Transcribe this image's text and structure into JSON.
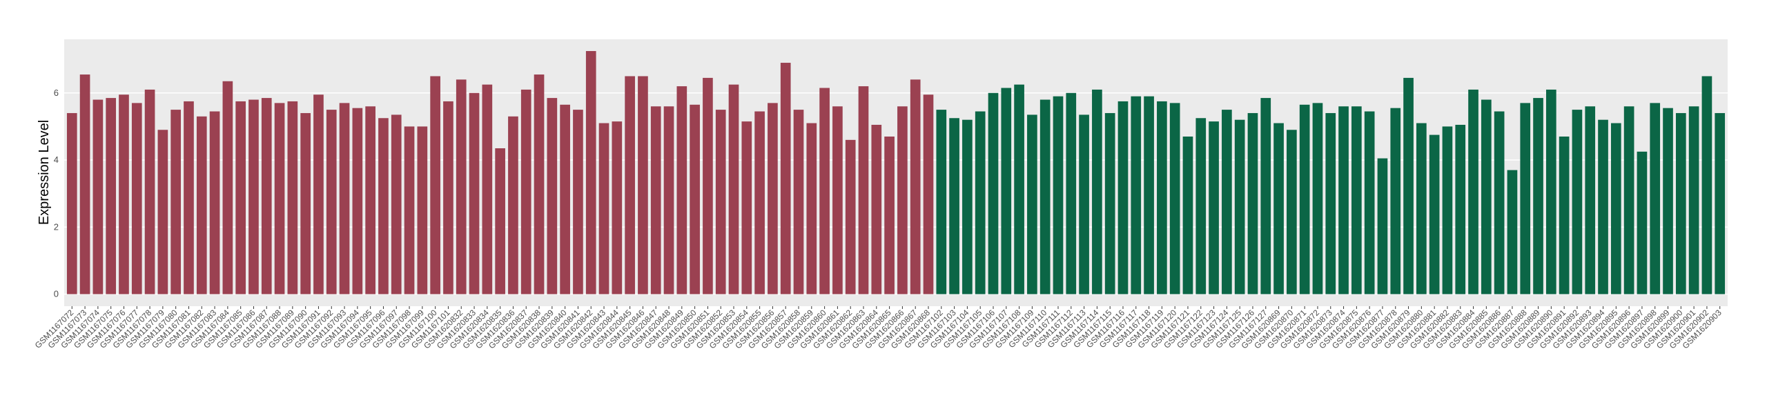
{
  "chart_data": {
    "type": "bar",
    "y_label": "Expression Level",
    "ylim": [
      -0.36,
      7.6
    ],
    "yticks": [
      0,
      2,
      4,
      6
    ],
    "grid": true,
    "series": [
      {
        "color": "#9b4151",
        "categories": [
          "GSM1167072",
          "GSM1167073",
          "GSM1167074",
          "GSM1167075",
          "GSM1167076",
          "GSM1167077",
          "GSM1167078",
          "GSM1167079",
          "GSM1167080",
          "GSM1167081",
          "GSM1167082",
          "GSM1167083",
          "GSM1167084",
          "GSM1167085",
          "GSM1167086",
          "GSM1167087",
          "GSM1167088",
          "GSM1167089",
          "GSM1167090",
          "GSM1167091",
          "GSM1167092",
          "GSM1167093",
          "GSM1167094",
          "GSM1167095",
          "GSM1167096",
          "GSM1167097",
          "GSM1167098",
          "GSM1167099",
          "GSM1167100",
          "GSM1167101",
          "GSM1620832",
          "GSM1620833",
          "GSM1620834",
          "GSM1620835",
          "GSM1620836",
          "GSM1620837",
          "GSM1620838",
          "GSM1620839",
          "GSM1620840",
          "GSM1620841",
          "GSM1620842",
          "GSM1620843",
          "GSM1620844",
          "GSM1620845",
          "GSM1620846",
          "GSM1620847",
          "GSM1620848",
          "GSM1620849",
          "GSM1620850",
          "GSM1620851",
          "GSM1620852",
          "GSM1620853",
          "GSM1620854",
          "GSM1620855",
          "GSM1620856",
          "GSM1620857",
          "GSM1620858",
          "GSM1620859",
          "GSM1620860",
          "GSM1620861",
          "GSM1620862",
          "GSM1620863",
          "GSM1620864",
          "GSM1620865",
          "GSM1620866",
          "GSM1620867",
          "GSM1620868"
        ],
        "values": [
          5.4,
          6.55,
          5.8,
          5.85,
          5.95,
          5.7,
          6.1,
          4.9,
          5.5,
          5.75,
          5.3,
          5.45,
          6.35,
          5.75,
          5.8,
          5.85,
          5.7,
          5.75,
          5.4,
          5.95,
          5.5,
          5.7,
          5.55,
          5.6,
          5.25,
          5.35,
          5.0,
          5.0,
          6.5,
          5.75,
          6.4,
          6.0,
          6.25,
          4.35,
          5.3,
          6.1,
          6.55,
          5.85,
          5.65,
          5.5,
          7.25,
          5.1,
          5.15,
          6.5,
          6.5,
          5.6,
          5.6,
          6.2,
          5.65,
          6.45,
          5.5,
          6.25,
          5.15,
          5.45,
          5.7,
          6.9,
          5.5,
          5.1,
          6.15,
          5.6,
          4.6,
          6.2,
          5.05,
          4.7,
          5.6,
          6.4,
          5.95
        ]
      },
      {
        "color": "#0b6646",
        "categories": [
          "GSM1167102",
          "GSM1167103",
          "GSM1167104",
          "GSM1167105",
          "GSM1167106",
          "GSM1167107",
          "GSM1167108",
          "GSM1167109",
          "GSM1167110",
          "GSM1167111",
          "GSM1167112",
          "GSM1167113",
          "GSM1167114",
          "GSM1167115",
          "GSM1167116",
          "GSM1167117",
          "GSM1167118",
          "GSM1167119",
          "GSM1167120",
          "GSM1167121",
          "GSM1167122",
          "GSM1167123",
          "GSM1167124",
          "GSM1167125",
          "GSM1167126",
          "GSM1167127",
          "GSM1620869",
          "GSM1620870",
          "GSM1620871",
          "GSM1620872",
          "GSM1620873",
          "GSM1620874",
          "GSM1620875",
          "GSM1620876",
          "GSM1620877",
          "GSM1620878",
          "GSM1620879",
          "GSM1620880",
          "GSM1620881",
          "GSM1620882",
          "GSM1620883",
          "GSM1620884",
          "GSM1620885",
          "GSM1620886",
          "GSM1620887",
          "GSM1620888",
          "GSM1620889",
          "GSM1620890",
          "GSM1620891",
          "GSM1620892",
          "GSM1620893",
          "GSM1620894",
          "GSM1620895",
          "GSM1620896",
          "GSM1620897",
          "GSM1620898",
          "GSM1620899",
          "GSM1620900",
          "GSM1620901",
          "GSM1620902",
          "GSM1620903"
        ],
        "values": [
          5.5,
          5.25,
          5.2,
          5.45,
          6.0,
          6.15,
          6.25,
          5.35,
          5.8,
          5.9,
          6.0,
          5.35,
          6.1,
          5.4,
          5.75,
          5.9,
          5.9,
          5.75,
          5.7,
          4.7,
          5.25,
          5.15,
          5.5,
          5.2,
          5.4,
          5.85,
          5.1,
          4.9,
          5.65,
          5.7,
          5.4,
          5.6,
          5.6,
          5.45,
          4.05,
          5.55,
          6.45,
          5.1,
          4.75,
          5.0,
          5.05,
          6.1,
          5.8,
          5.45,
          3.7,
          5.7,
          5.85,
          6.1,
          4.7,
          5.5,
          5.6,
          5.2,
          5.1,
          5.6,
          4.25,
          5.7,
          5.55,
          5.4,
          5.6,
          6.5,
          5.4
        ]
      }
    ]
  }
}
